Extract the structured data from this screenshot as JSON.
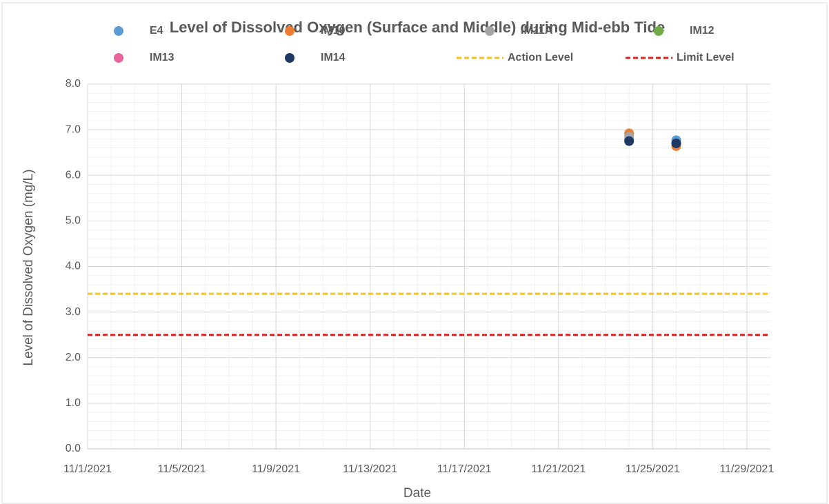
{
  "chart_data": {
    "type": "scatter",
    "title": "Level of Dissolved Oxygen (Surface and Middle) during Mid-ebb Tide",
    "x_label": "Date",
    "y_label": "Level of Dissolved Oxygen (mg/L)",
    "x": [
      "2021-11-24",
      "2021-11-26"
    ],
    "series": [
      {
        "name": "E4",
        "color": "#5b9bd5",
        "values": [
          6.8,
          6.77
        ]
      },
      {
        "name": "IM10",
        "color": "#ed7d31",
        "values": [
          6.92,
          6.64
        ]
      },
      {
        "name": "IM11A",
        "color": "#a5a5a5",
        "values": [
          6.85,
          6.7
        ]
      },
      {
        "name": "IM12",
        "color": "#70ad47",
        "values": [
          null,
          null
        ]
      },
      {
        "name": "IM13",
        "color": "#e8649c",
        "values": [
          null,
          null
        ]
      },
      {
        "name": "IM14",
        "color": "#203864",
        "values": [
          6.75,
          6.7
        ]
      }
    ],
    "reference_lines": [
      {
        "name": "Action Level",
        "color": "#f5c01a",
        "value": 3.4
      },
      {
        "name": "Limit Level",
        "color": "#e02020",
        "value": 2.5
      }
    ],
    "xlim": [
      "2021-11-01",
      "2021-11-30"
    ],
    "xticks": [
      {
        "value": "2021-11-01",
        "label": "11/1/2021"
      },
      {
        "value": "2021-11-05",
        "label": "11/5/2021"
      },
      {
        "value": "2021-11-09",
        "label": "11/9/2021"
      },
      {
        "value": "2021-11-13",
        "label": "11/13/2021"
      },
      {
        "value": "2021-11-17",
        "label": "11/17/2021"
      },
      {
        "value": "2021-11-21",
        "label": "11/21/2021"
      },
      {
        "value": "2021-11-25",
        "label": "11/25/2021"
      },
      {
        "value": "2021-11-29",
        "label": "11/29/2021"
      }
    ],
    "ylim": [
      0,
      8
    ],
    "yticks": [
      {
        "value": 0,
        "label": "0.0"
      },
      {
        "value": 1,
        "label": "1.0"
      },
      {
        "value": 2,
        "label": "2.0"
      },
      {
        "value": 3,
        "label": "3.0"
      },
      {
        "value": 4,
        "label": "4.0"
      },
      {
        "value": 5,
        "label": "5.0"
      },
      {
        "value": 6,
        "label": "6.0"
      },
      {
        "value": 7,
        "label": "7.0"
      },
      {
        "value": 8,
        "label": "8.0"
      }
    ],
    "grid": true
  }
}
